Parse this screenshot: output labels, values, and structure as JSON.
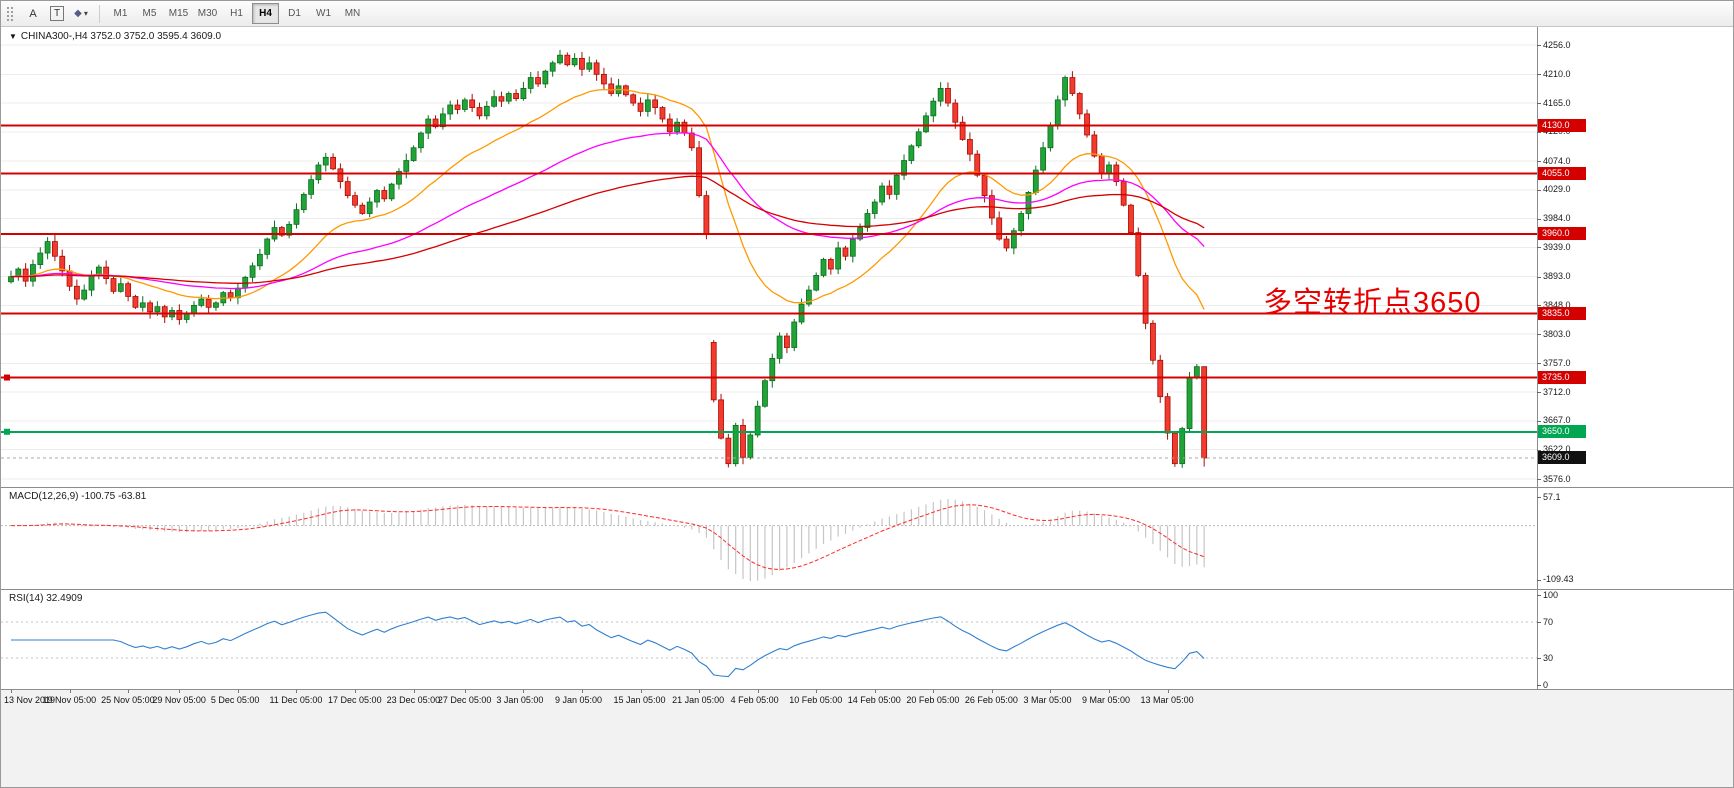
{
  "toolbar": {
    "tools": [
      {
        "id": "grip",
        "label": ""
      },
      {
        "id": "annotate-text",
        "label": "A"
      },
      {
        "id": "annotate-textbox",
        "label": "T"
      },
      {
        "id": "shapes",
        "label": "◆",
        "caret": "▾"
      }
    ],
    "timeframes": [
      "M1",
      "M5",
      "M15",
      "M30",
      "H1",
      "H4",
      "D1",
      "W1",
      "MN"
    ],
    "active_timeframe": "H4"
  },
  "chart": {
    "symbol_line": "CHINA300-,H4 3752.0 3752.0 3595.4 3609.0",
    "dropdown_glyph": "▼",
    "annotation": "多空转折点3650",
    "annotation_color": "#e60000",
    "y_ticks": [
      "4256.0",
      "4210.0",
      "4165.0",
      "4120.0",
      "4074.0",
      "4029.0",
      "3984.0",
      "3939.0",
      "3893.0",
      "3848.0",
      "3803.0",
      "3757.0",
      "3712.0",
      "3667.0",
      "3622.0",
      "3576.0"
    ],
    "levels": [
      {
        "value": 4130.0,
        "label": "4130.0",
        "color": "#d40000",
        "type": "resistance",
        "handle": false
      },
      {
        "value": 4055.0,
        "label": "4055.0",
        "color": "#d40000",
        "type": "resistance",
        "handle": false
      },
      {
        "value": 3960.0,
        "label": "3960.0",
        "color": "#d40000",
        "type": "resistance",
        "handle": false
      },
      {
        "value": 3835.0,
        "label": "3835.0",
        "color": "#d40000",
        "type": "resistance",
        "handle": false
      },
      {
        "value": 3735.0,
        "label": "3735.0",
        "color": "#d40000",
        "type": "resistance",
        "handle": true
      },
      {
        "value": 3650.0,
        "label": "3650.0",
        "color": "#00a651",
        "type": "support",
        "handle": true
      }
    ],
    "current_price": {
      "value": 3609.0,
      "label": "3609.0",
      "badge_color": "#111111"
    },
    "x_labels": [
      {
        "i": 0,
        "label": "13 Nov 2019"
      },
      {
        "i": 8,
        "label": "19 Nov 05:00"
      },
      {
        "i": 16,
        "label": "25 Nov 05:00"
      },
      {
        "i": 23,
        "label": "29 Nov 05:00"
      },
      {
        "i": 31,
        "label": "5 Dec 05:00"
      },
      {
        "i": 39,
        "label": "11 Dec 05:00"
      },
      {
        "i": 47,
        "label": "17 Dec 05:00"
      },
      {
        "i": 55,
        "label": "23 Dec 05:00"
      },
      {
        "i": 62,
        "label": "27 Dec 05:00"
      },
      {
        "i": 70,
        "label": "3 Jan 05:00"
      },
      {
        "i": 78,
        "label": "9 Jan 05:00"
      },
      {
        "i": 86,
        "label": "15 Jan 05:00"
      },
      {
        "i": 94,
        "label": "21 Jan 05:00"
      },
      {
        "i": 102,
        "label": "4 Feb 05:00"
      },
      {
        "i": 110,
        "label": "10 Feb 05:00"
      },
      {
        "i": 118,
        "label": "14 Feb 05:00"
      },
      {
        "i": 126,
        "label": "20 Feb 05:00"
      },
      {
        "i": 134,
        "label": "26 Feb 05:00"
      },
      {
        "i": 142,
        "label": "3 Mar 05:00"
      },
      {
        "i": 150,
        "label": "9 Mar 05:00"
      },
      {
        "i": 158,
        "label": "13 Mar 05:00"
      }
    ]
  },
  "indicators": {
    "macd": {
      "label": "MACD(12,26,9) -100.75 -63.81",
      "params": [
        12,
        26,
        9
      ],
      "value": -100.75,
      "signal_value": -63.81,
      "ticks": [
        {
          "label": "57.1",
          "value": 57.1
        },
        {
          "label": "-109.43",
          "value": -109.43
        }
      ],
      "histogram_color": "#c6c6c6",
      "signal_color": "#ff2a2a"
    },
    "rsi": {
      "label": "RSI(14) 32.4909",
      "period": 14,
      "value": 32.4909,
      "ticks": [
        {
          "label": "100",
          "value": 100
        },
        {
          "label": "70",
          "value": 70
        },
        {
          "label": "30",
          "value": 30
        },
        {
          "label": "0",
          "value": 0
        }
      ],
      "levels": [
        70,
        30
      ],
      "line_color": "#2f80d0"
    }
  },
  "chart_data": {
    "type": "candlestick",
    "symbol": "CHINA300-",
    "timeframe": "H4",
    "title": "CHINA300-,H4",
    "ylim": [
      3576,
      4256
    ],
    "ohlc_last": {
      "open": 3752.0,
      "high": 3752.0,
      "low": 3595.4,
      "close": 3609.0
    },
    "up_color": "#21a337",
    "up_stroke": "#0b6e1f",
    "down_color": "#f23b2e",
    "down_stroke": "#a80d05",
    "gaps": [
      {
        "index": 96,
        "open": 3790
      }
    ],
    "closes": [
      3893,
      3905,
      3886,
      3912,
      3930,
      3948,
      3925,
      3902,
      3878,
      3858,
      3872,
      3895,
      3908,
      3890,
      3870,
      3882,
      3862,
      3845,
      3852,
      3838,
      3846,
      3830,
      3840,
      3826,
      3835,
      3848,
      3858,
      3845,
      3852,
      3868,
      3860,
      3875,
      3892,
      3910,
      3928,
      3952,
      3970,
      3958,
      3975,
      3998,
      4022,
      4045,
      4068,
      4080,
      4062,
      4042,
      4020,
      4005,
      3992,
      4010,
      4028,
      4015,
      4038,
      4058,
      4075,
      4095,
      4118,
      4140,
      4128,
      4148,
      4162,
      4155,
      4170,
      4158,
      4145,
      4160,
      4175,
      4168,
      4180,
      4172,
      4188,
      4205,
      4195,
      4215,
      4228,
      4240,
      4225,
      4235,
      4218,
      4228,
      4210,
      4195,
      4180,
      4192,
      4178,
      4165,
      4152,
      4170,
      4158,
      4140,
      4120,
      4135,
      4118,
      4095,
      4020,
      3960,
      3700,
      3640,
      3600,
      3660,
      3610,
      3645,
      3690,
      3730,
      3765,
      3800,
      3782,
      3822,
      3850,
      3872,
      3895,
      3920,
      3905,
      3938,
      3925,
      3952,
      3970,
      3992,
      4010,
      4035,
      4022,
      4052,
      4075,
      4098,
      4120,
      4145,
      4168,
      4188,
      4165,
      4135,
      4108,
      4085,
      4052,
      4020,
      3985,
      3952,
      3938,
      3965,
      3992,
      4025,
      4060,
      4095,
      4130,
      4170,
      4205,
      4180,
      4148,
      4115,
      4082,
      4055,
      4068,
      4042,
      4005,
      3962,
      3895,
      3820,
      3762,
      3705,
      3648,
      3600,
      3655,
      3735,
      3752,
      3609
    ],
    "moving_averages": [
      {
        "name": "fast",
        "period": 21,
        "color": "#ff9900"
      },
      {
        "name": "mid",
        "period": 55,
        "color": "#ff00ff"
      },
      {
        "name": "slow",
        "period": 110,
        "color": "#d40000"
      }
    ]
  }
}
